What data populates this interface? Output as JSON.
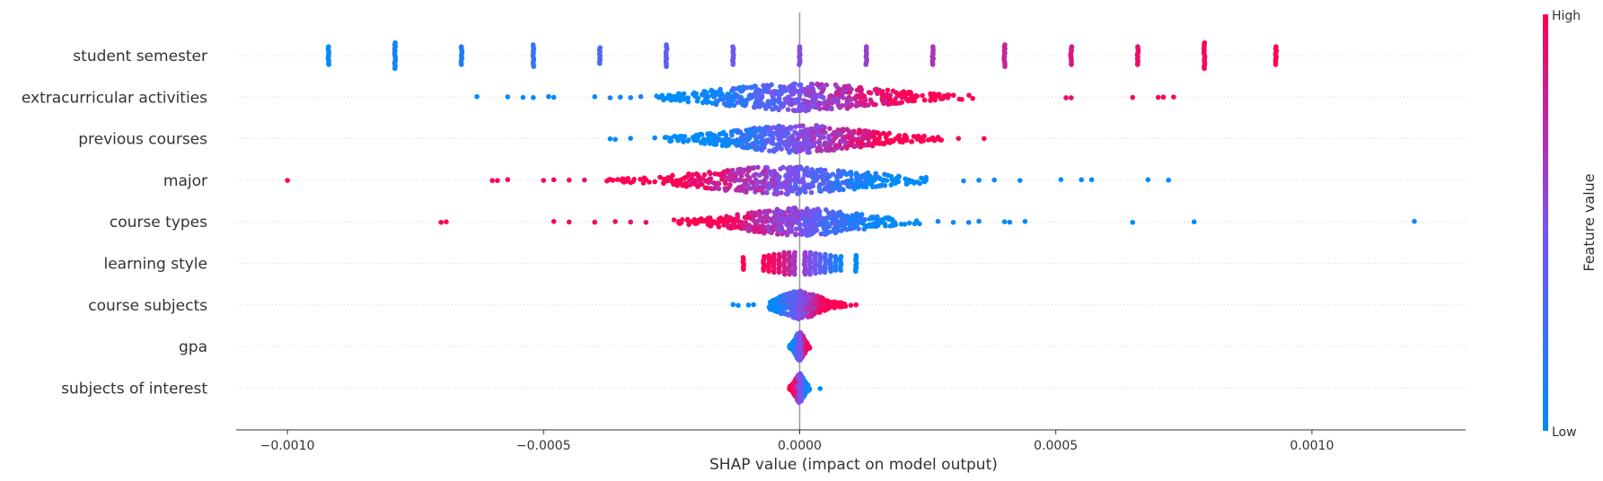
{
  "chart_data": {
    "type": "scatter",
    "subtype": "shap-beeswarm",
    "title": "",
    "xlabel": "SHAP value (impact on model output)",
    "ylabel": "",
    "xlim": [
      -0.0011,
      0.0013
    ],
    "xticks": [
      -0.001,
      -0.0005,
      0.0,
      0.0005,
      0.001
    ],
    "xtick_labels": [
      "−0.0010",
      "−0.0005",
      "0.0000",
      "0.0005",
      "0.0010"
    ],
    "grid": "horizontal dotted row guides",
    "zero_line": 0,
    "colormap": {
      "low": "#008bfb",
      "mid": "#7c52f0",
      "high": "#ff0052"
    },
    "colorbar": {
      "title": "Feature value",
      "high_label": "High",
      "low_label": "Low",
      "placement": "right"
    },
    "features": [
      {
        "name": "student semester",
        "kind": "discrete",
        "clusters": [
          {
            "x": -0.00092,
            "v": 0.0,
            "n": 10
          },
          {
            "x": -0.00079,
            "v": 0.08,
            "n": 14
          },
          {
            "x": -0.00066,
            "v": 0.15,
            "n": 10
          },
          {
            "x": -0.00052,
            "v": 0.23,
            "n": 12
          },
          {
            "x": -0.00039,
            "v": 0.31,
            "n": 9
          },
          {
            "x": -0.00026,
            "v": 0.38,
            "n": 12
          },
          {
            "x": -0.00013,
            "v": 0.46,
            "n": 10
          },
          {
            "x": 0.0,
            "v": 0.54,
            "n": 10
          },
          {
            "x": 0.00013,
            "v": 0.62,
            "n": 10
          },
          {
            "x": 0.00026,
            "v": 0.69,
            "n": 10
          },
          {
            "x": 0.0004,
            "v": 0.77,
            "n": 12
          },
          {
            "x": 0.00053,
            "v": 0.85,
            "n": 10
          },
          {
            "x": 0.00066,
            "v": 0.92,
            "n": 10
          },
          {
            "x": 0.00079,
            "v": 0.96,
            "n": 14
          },
          {
            "x": 0.00093,
            "v": 1.0,
            "n": 10
          }
        ]
      },
      {
        "name": "extracurricular activities",
        "kind": "continuous",
        "range": [
          -0.00063,
          0.00073
        ],
        "core": [
          -0.00028,
          0.00035
        ],
        "center": 0.0,
        "correlation": 1,
        "outliers": [
          {
            "x": -0.00063,
            "v": 0.0
          },
          {
            "x": -0.00057,
            "v": 0.0
          },
          {
            "x": -0.00054,
            "v": 0.02
          },
          {
            "x": -0.00052,
            "v": 0.0
          },
          {
            "x": -0.00049,
            "v": 0.05
          },
          {
            "x": -0.00048,
            "v": 0.02
          },
          {
            "x": -0.0004,
            "v": 0.05
          },
          {
            "x": -0.00037,
            "v": 0.1
          },
          {
            "x": -0.00035,
            "v": 0.05
          },
          {
            "x": -0.00033,
            "v": 0.1
          },
          {
            "x": -0.00031,
            "v": 0.12
          },
          {
            "x": 0.00052,
            "v": 0.95
          },
          {
            "x": 0.00053,
            "v": 0.92
          },
          {
            "x": 0.00065,
            "v": 1.0
          },
          {
            "x": 0.0007,
            "v": 0.95
          },
          {
            "x": 0.00071,
            "v": 1.0
          },
          {
            "x": 0.00073,
            "v": 0.98
          }
        ]
      },
      {
        "name": "previous courses",
        "kind": "continuous",
        "range": [
          -0.00037,
          0.00036
        ],
        "core": [
          -0.0003,
          0.00028
        ],
        "center": 0.0,
        "correlation": 1,
        "spike": {
          "x": 1e-05,
          "v": 0.55,
          "height": 0.5
        },
        "outliers": [
          {
            "x": -0.00037,
            "v": 0.0
          },
          {
            "x": -0.00036,
            "v": 0.02
          },
          {
            "x": -0.00033,
            "v": 0.05
          },
          {
            "x": 0.00031,
            "v": 0.95
          },
          {
            "x": 0.00036,
            "v": 1.0
          }
        ]
      },
      {
        "name": "major",
        "kind": "continuous",
        "range": [
          -0.001,
          0.00072
        ],
        "core": [
          -0.00038,
          0.00025
        ],
        "center": -3e-05,
        "correlation": -1,
        "spike": {
          "x": -2e-05,
          "v": 0.5,
          "height": 0.5
        },
        "outliers": [
          {
            "x": -0.001,
            "v": 1.0
          },
          {
            "x": -0.0006,
            "v": 1.0
          },
          {
            "x": -0.00059,
            "v": 0.98
          },
          {
            "x": -0.00057,
            "v": 1.0
          },
          {
            "x": -0.0005,
            "v": 0.95
          },
          {
            "x": -0.00048,
            "v": 0.98
          },
          {
            "x": -0.00045,
            "v": 0.95
          },
          {
            "x": -0.00042,
            "v": 0.9
          },
          {
            "x": 0.00032,
            "v": 0.1
          },
          {
            "x": 0.00035,
            "v": 0.05
          },
          {
            "x": 0.00038,
            "v": 0.08
          },
          {
            "x": 0.00043,
            "v": 0.05
          },
          {
            "x": 0.00051,
            "v": 0.0
          },
          {
            "x": 0.00055,
            "v": 0.02
          },
          {
            "x": 0.00057,
            "v": 0.0
          },
          {
            "x": 0.00068,
            "v": 0.0
          },
          {
            "x": 0.00072,
            "v": 0.02
          }
        ]
      },
      {
        "name": "course types",
        "kind": "continuous",
        "range": [
          -0.0007,
          0.0012
        ],
        "core": [
          -0.00026,
          0.00025
        ],
        "center": 0.0,
        "correlation": -1,
        "outliers": [
          {
            "x": -0.0007,
            "v": 1.0
          },
          {
            "x": -0.00069,
            "v": 0.98
          },
          {
            "x": -0.00048,
            "v": 1.0
          },
          {
            "x": -0.00045,
            "v": 0.95
          },
          {
            "x": -0.0004,
            "v": 0.98
          },
          {
            "x": -0.00036,
            "v": 0.95
          },
          {
            "x": -0.00033,
            "v": 0.9
          },
          {
            "x": -0.0003,
            "v": 0.92
          },
          {
            "x": 0.00027,
            "v": 0.1
          },
          {
            "x": 0.0003,
            "v": 0.05
          },
          {
            "x": 0.00033,
            "v": 0.08
          },
          {
            "x": 0.00035,
            "v": 0.05
          },
          {
            "x": 0.0004,
            "v": 0.02
          },
          {
            "x": 0.00041,
            "v": 0.05
          },
          {
            "x": 0.00044,
            "v": 0.0
          },
          {
            "x": 0.00065,
            "v": 0.0
          },
          {
            "x": 0.00077,
            "v": 0.02
          },
          {
            "x": 0.0012,
            "v": 0.0
          }
        ]
      },
      {
        "name": "learning style",
        "kind": "discrete",
        "clusters": [
          {
            "x": -0.00011,
            "v": 1.0,
            "n": 7
          },
          {
            "x": -7e-05,
            "v": 0.98,
            "n": 8
          },
          {
            "x": -6e-05,
            "v": 0.96,
            "n": 9
          },
          {
            "x": -5e-05,
            "v": 0.93,
            "n": 10
          },
          {
            "x": -4e-05,
            "v": 0.9,
            "n": 10
          },
          {
            "x": -3e-05,
            "v": 0.82,
            "n": 12
          },
          {
            "x": -2e-05,
            "v": 0.75,
            "n": 12
          },
          {
            "x": -1e-05,
            "v": 0.66,
            "n": 12
          },
          {
            "x": 1e-05,
            "v": 0.6,
            "n": 12
          },
          {
            "x": 2e-05,
            "v": 0.52,
            "n": 12
          },
          {
            "x": 3e-05,
            "v": 0.45,
            "n": 11
          },
          {
            "x": 4e-05,
            "v": 0.38,
            "n": 10
          },
          {
            "x": 5e-05,
            "v": 0.3,
            "n": 10
          },
          {
            "x": 6e-05,
            "v": 0.22,
            "n": 9
          },
          {
            "x": 7e-05,
            "v": 0.12,
            "n": 8
          },
          {
            "x": 8e-05,
            "v": 0.05,
            "n": 8
          },
          {
            "x": 0.00011,
            "v": 0.0,
            "n": 9
          }
        ]
      },
      {
        "name": "course subjects",
        "kind": "continuous",
        "range": [
          -0.00013,
          0.00011
        ],
        "core": [
          -6e-05,
          9e-05
        ],
        "center": 0.0,
        "correlation": 1,
        "spike": {
          "x": 0.0,
          "v": 0.5,
          "height": 0.6
        },
        "outliers": [
          {
            "x": -0.00013,
            "v": 0.0
          },
          {
            "x": -0.00012,
            "v": 0.02
          },
          {
            "x": -0.0001,
            "v": 0.0
          },
          {
            "x": -9e-05,
            "v": 0.05
          },
          {
            "x": 0.0001,
            "v": 1.0
          },
          {
            "x": 0.00011,
            "v": 0.98
          }
        ]
      },
      {
        "name": "gpa",
        "kind": "continuous",
        "range": [
          -2e-05,
          2e-05
        ],
        "core": [
          -2e-05,
          2e-05
        ],
        "center": 0.0,
        "correlation": 1,
        "spike": {
          "x": 0.0,
          "v": 0.5,
          "height": 0.6
        }
      },
      {
        "name": "subjects of interest",
        "kind": "continuous",
        "range": [
          -3e-05,
          4e-05
        ],
        "core": [
          -2e-05,
          2e-05
        ],
        "center": 0.0,
        "correlation": -1,
        "spike": {
          "x": 0.0,
          "v": 0.5,
          "height": 0.8
        },
        "outliers": [
          {
            "x": 4e-05,
            "v": 0.0
          }
        ]
      }
    ]
  }
}
